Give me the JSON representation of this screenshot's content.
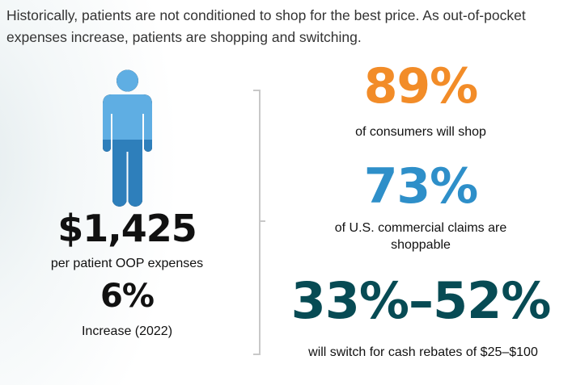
{
  "headline": "Historically, patients are not conditioned to shop for the best price. As out-of-pocket expenses increase, patients are shopping and switching.",
  "left": {
    "icon": "person-icon",
    "amount": "$1,425",
    "amount_label": "per patient OOP expenses",
    "increase": "6%",
    "increase_label": "Increase (2022)"
  },
  "stats": [
    {
      "value": "89%",
      "label": "of consumers will shop",
      "color": "#f28c28"
    },
    {
      "value": "73%",
      "label": "of U.S. commercial claims are shoppable",
      "color": "#2e8fc9"
    },
    {
      "value": "33%–52%",
      "label": "will switch for cash rebates of $25–$100",
      "color": "#074b54"
    }
  ],
  "colors": {
    "person_top": "#5faee3",
    "person_bottom": "#2e7fbb"
  }
}
